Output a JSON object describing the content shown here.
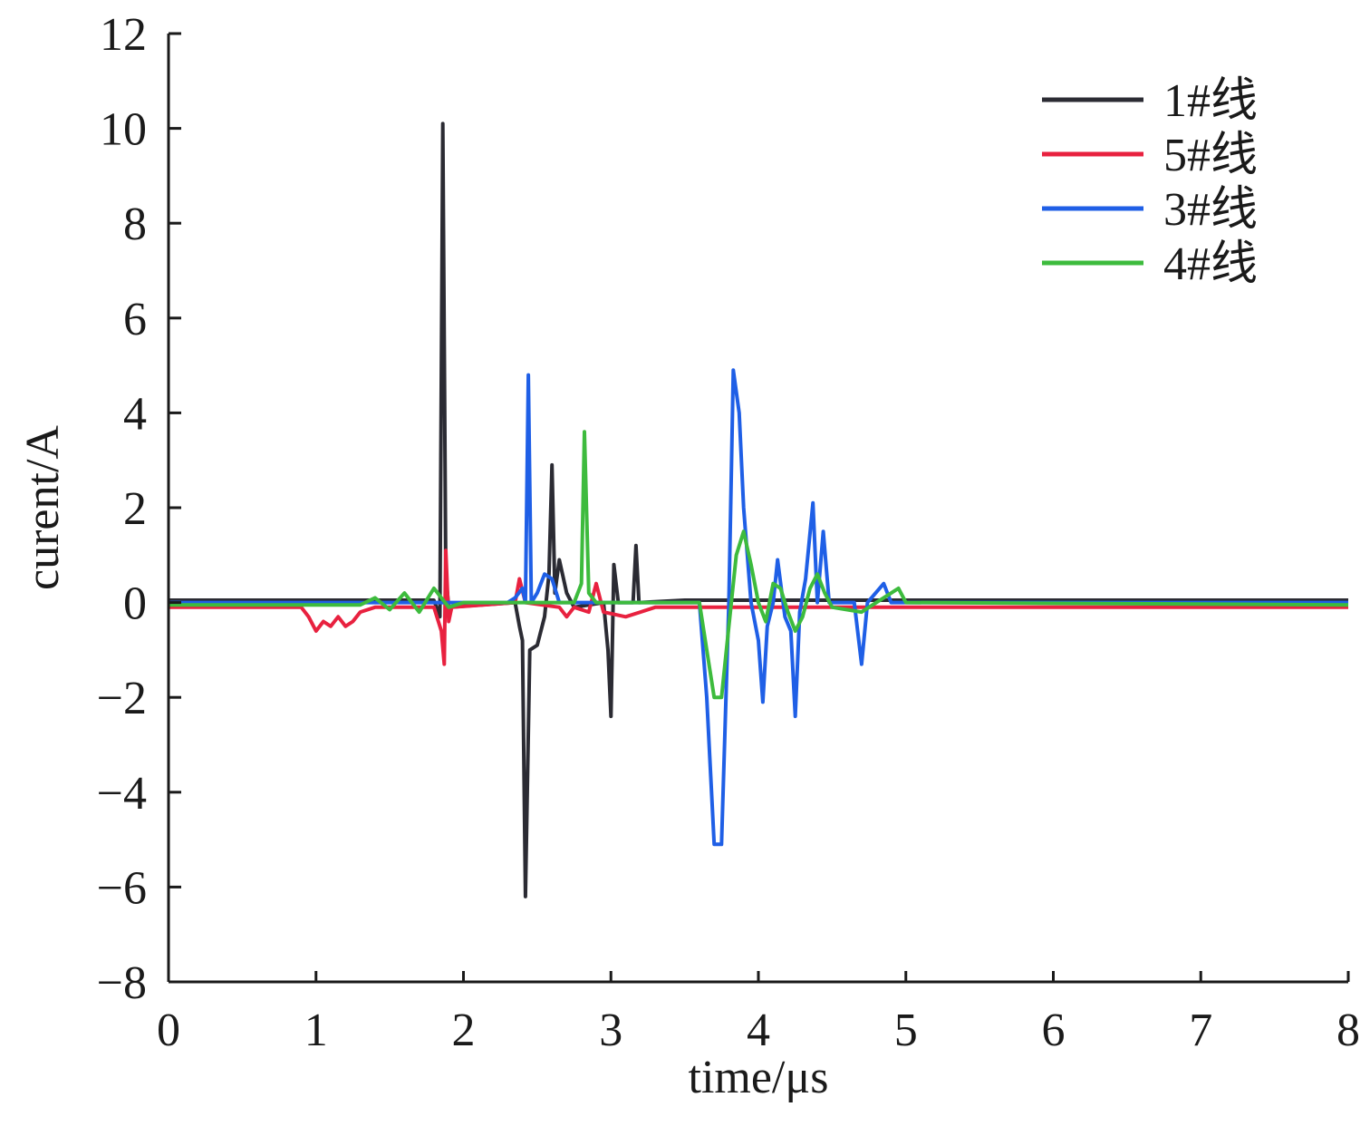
{
  "chart_data": {
    "type": "line",
    "title": "",
    "xlabel": "time/μs",
    "ylabel": "curent/A",
    "xlim": [
      0,
      8
    ],
    "ylim": [
      -8,
      12
    ],
    "xticks": [
      0,
      1,
      2,
      3,
      4,
      5,
      6,
      7,
      8
    ],
    "yticks": [
      -8,
      -6,
      -4,
      -2,
      0,
      2,
      4,
      6,
      8,
      10,
      12
    ],
    "xtick_labels": [
      "0",
      "1",
      "2",
      "3",
      "4",
      "5",
      "6",
      "7",
      "8"
    ],
    "ytick_labels": [
      "−8",
      "−6",
      "−4",
      "−2",
      "0",
      "2",
      "4",
      "6",
      "8",
      "10",
      "12"
    ],
    "grid": false,
    "legend_position": "top-right",
    "series": [
      {
        "name": "1#线",
        "color": "#2b2b33",
        "points": [
          [
            0,
            0.05
          ],
          [
            1.8,
            0.05
          ],
          [
            1.84,
            -0.3
          ],
          [
            1.86,
            10.1
          ],
          [
            1.88,
            0.6
          ],
          [
            1.9,
            -0.1
          ],
          [
            2.35,
            0.0
          ],
          [
            2.38,
            -0.5
          ],
          [
            2.4,
            -0.8
          ],
          [
            2.42,
            -6.2
          ],
          [
            2.45,
            -1.0
          ],
          [
            2.5,
            -0.9
          ],
          [
            2.55,
            -0.3
          ],
          [
            2.58,
            0.6
          ],
          [
            2.6,
            2.9
          ],
          [
            2.62,
            0.2
          ],
          [
            2.65,
            0.9
          ],
          [
            2.7,
            0.2
          ],
          [
            2.75,
            -0.1
          ],
          [
            2.95,
            0.0
          ],
          [
            2.98,
            -1.0
          ],
          [
            3.0,
            -2.4
          ],
          [
            3.02,
            0.8
          ],
          [
            3.05,
            0.0
          ],
          [
            3.15,
            0.0
          ],
          [
            3.17,
            1.2
          ],
          [
            3.19,
            0.0
          ],
          [
            3.5,
            0.05
          ],
          [
            8,
            0.05
          ]
        ]
      },
      {
        "name": "5#线",
        "color": "#e8213f",
        "points": [
          [
            0,
            -0.1
          ],
          [
            0.9,
            -0.1
          ],
          [
            0.95,
            -0.3
          ],
          [
            1.0,
            -0.6
          ],
          [
            1.05,
            -0.4
          ],
          [
            1.1,
            -0.5
          ],
          [
            1.15,
            -0.3
          ],
          [
            1.2,
            -0.5
          ],
          [
            1.25,
            -0.4
          ],
          [
            1.3,
            -0.2
          ],
          [
            1.4,
            -0.1
          ],
          [
            1.8,
            -0.1
          ],
          [
            1.85,
            -0.6
          ],
          [
            1.87,
            -1.3
          ],
          [
            1.88,
            1.1
          ],
          [
            1.9,
            -0.4
          ],
          [
            1.92,
            -0.1
          ],
          [
            2.35,
            0.0
          ],
          [
            2.38,
            0.5
          ],
          [
            2.42,
            0.0
          ],
          [
            2.65,
            -0.1
          ],
          [
            2.7,
            -0.3
          ],
          [
            2.75,
            -0.1
          ],
          [
            2.85,
            -0.2
          ],
          [
            2.9,
            0.4
          ],
          [
            2.95,
            -0.2
          ],
          [
            3.1,
            -0.3
          ],
          [
            3.2,
            -0.2
          ],
          [
            3.3,
            -0.1
          ],
          [
            8,
            -0.1
          ]
        ]
      },
      {
        "name": "3#线",
        "color": "#1f5fe6",
        "points": [
          [
            0,
            0.0
          ],
          [
            2.3,
            0.0
          ],
          [
            2.35,
            0.1
          ],
          [
            2.4,
            0.3
          ],
          [
            2.42,
            0.0
          ],
          [
            2.44,
            4.8
          ],
          [
            2.46,
            0.0
          ],
          [
            2.5,
            0.2
          ],
          [
            2.55,
            0.6
          ],
          [
            2.6,
            0.5
          ],
          [
            2.65,
            0.0
          ],
          [
            3.5,
            0.0
          ],
          [
            3.6,
            0.0
          ],
          [
            3.65,
            -2.0
          ],
          [
            3.7,
            -5.1
          ],
          [
            3.75,
            -5.1
          ],
          [
            3.8,
            0.0
          ],
          [
            3.83,
            4.9
          ],
          [
            3.87,
            4.0
          ],
          [
            3.9,
            2.0
          ],
          [
            3.95,
            0.0
          ],
          [
            4.0,
            -0.8
          ],
          [
            4.03,
            -2.1
          ],
          [
            4.06,
            -0.5
          ],
          [
            4.1,
            0.0
          ],
          [
            4.13,
            0.9
          ],
          [
            4.18,
            -0.3
          ],
          [
            4.22,
            -0.6
          ],
          [
            4.25,
            -2.4
          ],
          [
            4.28,
            -0.2
          ],
          [
            4.32,
            0.5
          ],
          [
            4.37,
            2.1
          ],
          [
            4.4,
            0.0
          ],
          [
            4.44,
            1.5
          ],
          [
            4.48,
            0.0
          ],
          [
            4.65,
            0.0
          ],
          [
            4.7,
            -1.3
          ],
          [
            4.74,
            0.0
          ],
          [
            4.85,
            0.4
          ],
          [
            4.9,
            0.0
          ],
          [
            8,
            0.0
          ]
        ]
      },
      {
        "name": "4#线",
        "color": "#3dbb3d",
        "points": [
          [
            0,
            -0.05
          ],
          [
            1.3,
            -0.05
          ],
          [
            1.4,
            0.1
          ],
          [
            1.5,
            -0.15
          ],
          [
            1.6,
            0.2
          ],
          [
            1.7,
            -0.2
          ],
          [
            1.8,
            0.3
          ],
          [
            1.9,
            -0.1
          ],
          [
            2.0,
            0.0
          ],
          [
            2.75,
            0.0
          ],
          [
            2.8,
            0.4
          ],
          [
            2.82,
            3.6
          ],
          [
            2.85,
            0.2
          ],
          [
            2.9,
            0.0
          ],
          [
            3.6,
            0.0
          ],
          [
            3.65,
            -1.0
          ],
          [
            3.7,
            -2.0
          ],
          [
            3.75,
            -2.0
          ],
          [
            3.8,
            -0.5
          ],
          [
            3.85,
            1.0
          ],
          [
            3.9,
            1.5
          ],
          [
            3.95,
            0.8
          ],
          [
            4.0,
            0.0
          ],
          [
            4.05,
            -0.4
          ],
          [
            4.1,
            0.4
          ],
          [
            4.15,
            0.3
          ],
          [
            4.2,
            -0.2
          ],
          [
            4.25,
            -0.6
          ],
          [
            4.3,
            -0.3
          ],
          [
            4.35,
            0.3
          ],
          [
            4.4,
            0.6
          ],
          [
            4.45,
            0.2
          ],
          [
            4.5,
            -0.1
          ],
          [
            4.7,
            -0.2
          ],
          [
            4.8,
            0.0
          ],
          [
            4.95,
            0.3
          ],
          [
            5.0,
            0.0
          ],
          [
            8,
            -0.05
          ]
        ]
      }
    ]
  }
}
